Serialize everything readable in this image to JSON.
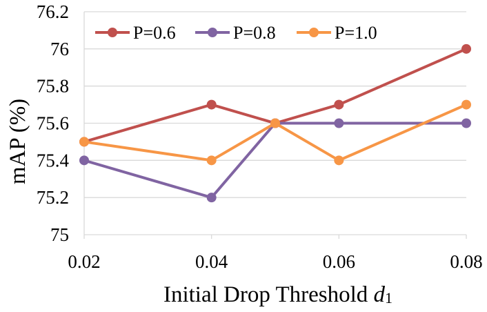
{
  "chart_data": {
    "type": "line",
    "title": "",
    "xlabel": "Initial Drop Threshold d1",
    "xlabel_main": "Initial Drop Threshold ",
    "xlabel_var": "d",
    "xlabel_sub": "1",
    "ylabel": "mAP (%)",
    "x": [
      0.02,
      0.04,
      0.05,
      0.06,
      0.08
    ],
    "xticks": [
      "0.02",
      "0.04",
      "0.06",
      "0.08"
    ],
    "xtick_values": [
      0.02,
      0.04,
      0.06,
      0.08
    ],
    "xlim": [
      0.02,
      0.08
    ],
    "yticks": [
      "75",
      "75.2",
      "75.4",
      "75.6",
      "75.8",
      "76",
      "76.2"
    ],
    "ytick_values": [
      75,
      75.2,
      75.4,
      75.6,
      75.8,
      76,
      76.2
    ],
    "ylim": [
      75,
      76.2
    ],
    "grid": "horizontal",
    "legend": "top",
    "series": [
      {
        "name": "P=0.6",
        "color": "#c0504d",
        "values": [
          75.5,
          75.7,
          75.6,
          75.7,
          76.0
        ]
      },
      {
        "name": "P=0.8",
        "color": "#8064a2",
        "values": [
          75.4,
          75.2,
          75.6,
          75.6,
          75.6
        ]
      },
      {
        "name": "P=1.0",
        "color": "#f79646",
        "values": [
          75.5,
          75.4,
          75.6,
          75.4,
          75.7
        ]
      }
    ]
  }
}
